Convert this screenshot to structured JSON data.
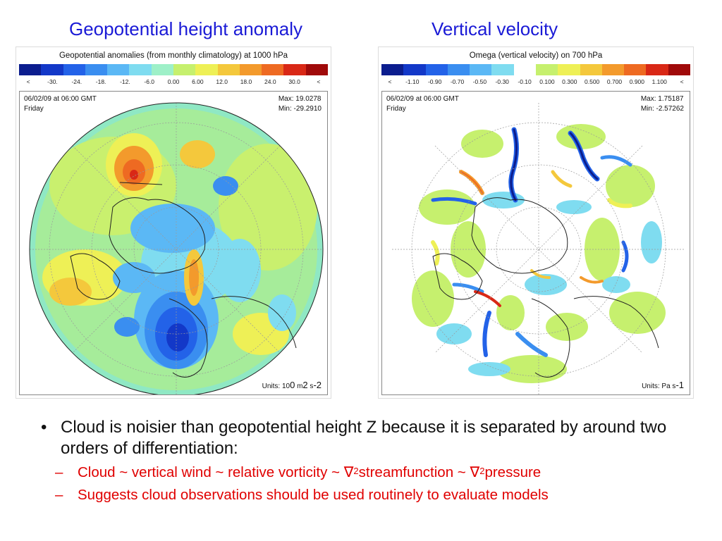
{
  "headings": {
    "left": "Geopotential height anomaly",
    "right": "Vertical velocity"
  },
  "left_panel": {
    "title": "Geopotential anomalies (from monthly climatology) at 1000 hPa",
    "colorbar_colors": [
      "#0b1d8e",
      "#1338c8",
      "#2362e8",
      "#3a8ef0",
      "#5bb8f5",
      "#7fdcf0",
      "#9ef0c8",
      "#c6f06e",
      "#eef056",
      "#f4c83c",
      "#f39a2c",
      "#ee6a22",
      "#d92816",
      "#a00a0a"
    ],
    "ticks": [
      "<",
      "-30.",
      "-24.",
      "-18.",
      "-12.",
      "-6.0",
      "0.00",
      "6.00",
      "12.0",
      "18.0",
      "24.0",
      "30.0",
      "<"
    ],
    "date": "06/02/09 at 06:00 GMT",
    "day": "Friday",
    "max": "Max: 19.0278",
    "min": "Min: -29.2910",
    "units_prefix": "Units: 10",
    "units_exp1": "0",
    "units_mid": " m",
    "units_exp2": "2",
    "units_mid2": " s",
    "units_exp3": "-2"
  },
  "right_panel": {
    "title": "Omega (vertical velocity) on 700 hPa",
    "colorbar_colors": [
      "#0b1d8e",
      "#1338c8",
      "#2362e8",
      "#3a8ef0",
      "#5bb8f5",
      "#7fdcf0",
      "#ffffff",
      "#c6f06e",
      "#eef056",
      "#f4c83c",
      "#f39a2c",
      "#ee6a22",
      "#d92816",
      "#a00a0a"
    ],
    "ticks": [
      "<",
      "-1.10",
      "-0.90",
      "-0.70",
      "-0.50",
      "-0.30",
      "-0.10",
      "0.100",
      "0.300",
      "0.500",
      "0.700",
      "0.900",
      "1.100",
      "<"
    ],
    "date": "06/02/09 at 06:00 GMT",
    "day": "Friday",
    "max": "Max: 1.75187",
    "min": "Min: -2.57262",
    "units_prefix": "Units: Pa s",
    "units_exp": "-1"
  },
  "bullets": {
    "main": "Cloud is noisier than geopotential height Z because it is separated by around two orders of differentiation:",
    "sub1_pre": "Cloud ~ vertical wind ~ relative vorticity ~ ",
    "nabla": "∇",
    "sq": "2",
    "sub1_mid": "streamfunction ~ ",
    "sub1_post": "pressure",
    "sub2": "Suggests cloud observations should be used routinely to evaluate models",
    "bullet_char": "•",
    "dash_char": "–"
  }
}
